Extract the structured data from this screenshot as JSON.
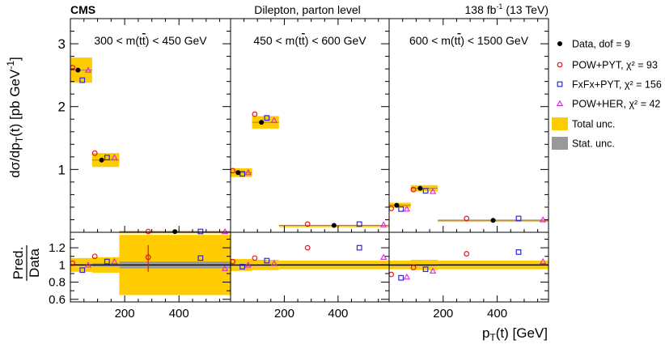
{
  "header": {
    "experiment": "CMS",
    "center_label": "Dilepton, parton level",
    "lumi_value": "138 fb",
    "lumi_exp": "-1",
    "lumi_energy": " (13 TeV)"
  },
  "colors": {
    "data": "#000000",
    "pow_pyt": "#e8141a",
    "fxfx_pyt": "#2a2ad8",
    "pow_her": "#e020e0",
    "total_unc": "#ffcc00",
    "stat_unc": "#999999",
    "ratio_line": "#000000"
  },
  "legend": [
    {
      "key": "data",
      "label": "Data, dof = 9",
      "marker": "dot"
    },
    {
      "key": "pow_pyt",
      "label": "POW+PYT, χ² = 93",
      "marker": "circle"
    },
    {
      "key": "fxfx_pyt",
      "label": "FxFx+PYT, χ² = 156",
      "marker": "square"
    },
    {
      "key": "pow_her",
      "label": "POW+HER, χ² = 42",
      "marker": "triangle"
    },
    {
      "key": "total_unc",
      "label": "Total unc.",
      "marker": "box"
    },
    {
      "key": "stat_unc",
      "label": "Stat. unc.",
      "marker": "box"
    }
  ],
  "chart_data": {
    "type": "scatter",
    "title": "Dilepton, parton level",
    "xlabel": "p_T(t) [GeV]",
    "ylabel_top": "dσ/dp_T(t) [pb GeV^-1]",
    "ylabel_bottom": "Pred./Data",
    "top_ylim": [
      0,
      3.4
    ],
    "top_yticks": [
      1,
      2,
      3
    ],
    "ratio_ylim": [
      0.57,
      1.38
    ],
    "ratio_yticks": [
      0.6,
      0.8,
      1,
      1.2
    ],
    "x_ticks": [
      200,
      400
    ],
    "panels": [
      {
        "label_parts": [
          "300 < m(t",
          "t",
          ") < 450 GeV"
        ],
        "bins": [
          [
            0,
            80
          ],
          [
            80,
            180
          ],
          [
            180,
            590
          ]
        ],
        "data": [
          2.58,
          1.15,
          0.012
        ],
        "total_unc": [
          0.2,
          0.11,
          0.01
        ],
        "pow_pyt": [
          2.62,
          1.26,
          0.013
        ],
        "fxfx_pyt": [
          2.42,
          1.19,
          0.013
        ],
        "pow_her": [
          2.58,
          1.19,
          0.011
        ],
        "ratio_pow_pyt": [
          1.02,
          1.1,
          1.09
        ],
        "ratio_fxfx_pyt": [
          0.94,
          1.04,
          1.08
        ],
        "ratio_pow_her": [
          1.0,
          1.04,
          0.96
        ],
        "ratio_total_unc": [
          0.08,
          0.09,
          0.35
        ],
        "ratio_stat_unc": [
          0.01,
          0.02,
          0.04
        ]
      },
      {
        "label_parts": [
          "450 < m(t",
          "t",
          ") < 600 GeV"
        ],
        "bins": [
          [
            0,
            80
          ],
          [
            80,
            180
          ],
          [
            180,
            590
          ]
        ],
        "data": [
          0.95,
          1.75,
          0.11
        ],
        "total_unc": [
          0.07,
          0.1,
          0.01
        ],
        "pow_pyt": [
          0.98,
          1.88,
          0.13
        ],
        "fxfx_pyt": [
          0.93,
          1.82,
          0.13
        ],
        "pow_her": [
          0.95,
          1.78,
          0.12
        ],
        "ratio_pow_pyt": [
          1.04,
          1.08,
          1.2
        ],
        "ratio_fxfx_pyt": [
          0.98,
          1.05,
          1.2
        ],
        "ratio_pow_her": [
          1.0,
          1.02,
          1.09
        ],
        "ratio_total_unc": [
          0.07,
          0.06,
          0.05
        ],
        "ratio_stat_unc": [
          0.005,
          0.005,
          0.01
        ]
      },
      {
        "label_parts": [
          "600 < m(t",
          "t",
          ") < 1500 GeV"
        ],
        "bins": [
          [
            0,
            80
          ],
          [
            80,
            180
          ],
          [
            180,
            590
          ]
        ],
        "data": [
          0.43,
          0.7,
          0.19
        ],
        "total_unc": [
          0.04,
          0.05,
          0.015
        ],
        "pow_pyt": [
          0.38,
          0.68,
          0.22
        ],
        "fxfx_pyt": [
          0.37,
          0.66,
          0.22
        ],
        "pow_her": [
          0.37,
          0.65,
          0.2
        ],
        "ratio_pow_pyt": [
          0.89,
          0.97,
          1.13
        ],
        "ratio_fxfx_pyt": [
          0.85,
          0.95,
          1.15
        ],
        "ratio_pow_her": [
          0.86,
          0.93,
          1.04
        ],
        "ratio_total_unc": [
          0.05,
          0.06,
          0.05
        ],
        "ratio_stat_unc": [
          0.005,
          0.005,
          0.01
        ]
      }
    ]
  }
}
